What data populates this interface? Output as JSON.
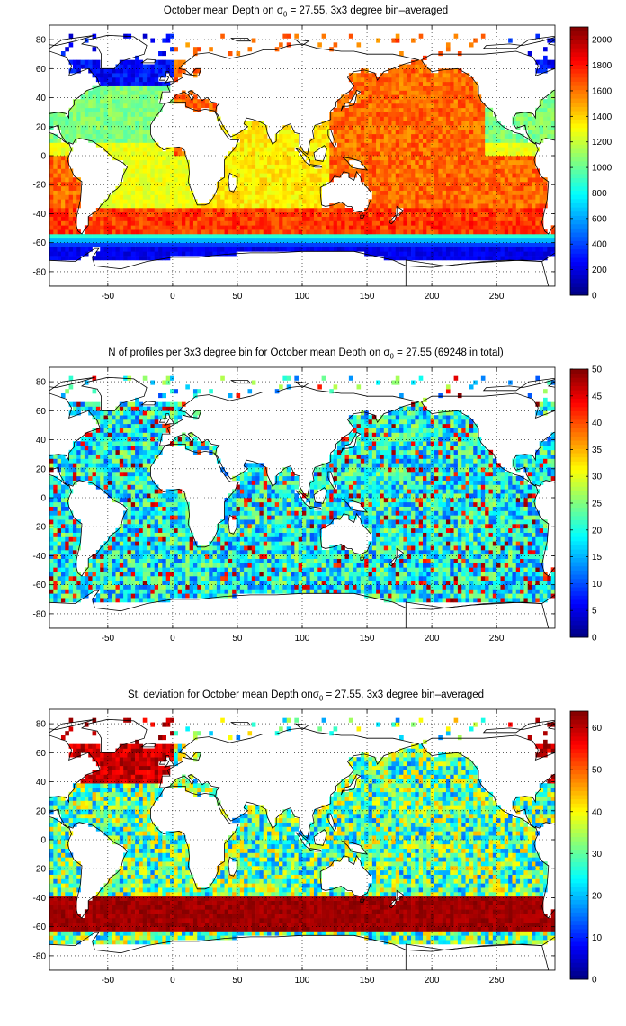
{
  "chart_data": [
    {
      "type": "heatmap",
      "title_prefix": "October mean Depth on σ",
      "title_sub": "θ",
      "title_suffix": " = 27.55, 3x3 degree bin–averaged",
      "xticks": [
        -50,
        0,
        50,
        100,
        150,
        200,
        250
      ],
      "yticks": [
        80,
        60,
        40,
        20,
        0,
        -20,
        -40,
        -60,
        -80
      ],
      "xlim": [
        -95,
        295
      ],
      "ylim": [
        -90,
        90
      ],
      "colorbar": {
        "min": 0,
        "max": 2100,
        "ticks": [
          0,
          200,
          400,
          600,
          800,
          1000,
          1200,
          1400,
          1600,
          1800,
          2000
        ]
      },
      "field": "depth"
    },
    {
      "type": "heatmap",
      "title_prefix": "N of profiles per 3x3 degree bin for October mean Depth on σ",
      "title_sub": "θ",
      "title_suffix": " = 27.55 (69248 in total)",
      "xticks": [
        -50,
        0,
        50,
        100,
        150,
        200,
        250
      ],
      "yticks": [
        80,
        60,
        40,
        20,
        0,
        -20,
        -40,
        -60,
        -80
      ],
      "xlim": [
        -95,
        295
      ],
      "ylim": [
        -90,
        90
      ],
      "colorbar": {
        "min": 0,
        "max": 50,
        "ticks": [
          0,
          5,
          10,
          15,
          20,
          25,
          30,
          35,
          40,
          45,
          50
        ]
      },
      "field": "count"
    },
    {
      "type": "heatmap",
      "title_prefix": "St. deviation for October mean Depth onσ",
      "title_sub": "θ",
      "title_suffix": " = 27.55, 3x3 degree bin–averaged",
      "xticks": [
        -50,
        0,
        50,
        100,
        150,
        200,
        250
      ],
      "yticks": [
        80,
        60,
        40,
        20,
        0,
        -20,
        -40,
        -60,
        -80
      ],
      "xlim": [
        -95,
        295
      ],
      "ylim": [
        -90,
        90
      ],
      "colorbar": {
        "min": 0,
        "max": 64,
        "ticks": [
          0,
          10,
          20,
          30,
          40,
          50,
          60
        ]
      },
      "field": "std"
    }
  ]
}
